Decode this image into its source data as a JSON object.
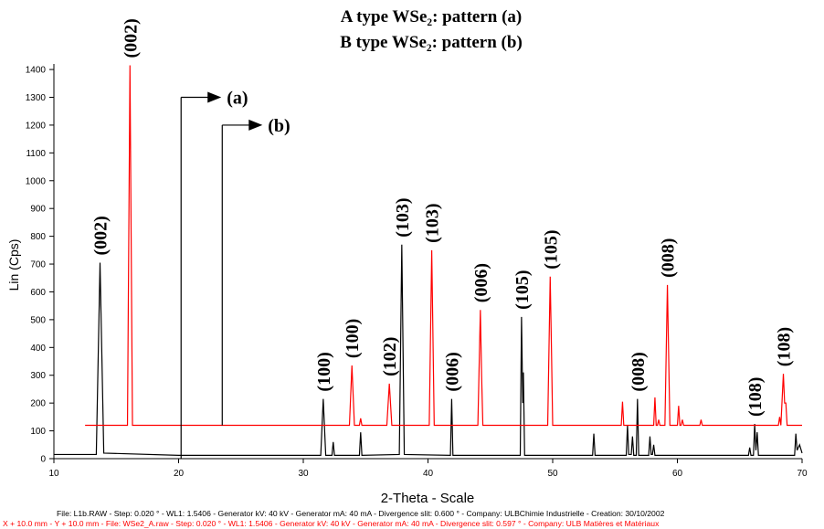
{
  "chart_data": {
    "type": "line",
    "title": "A type WSe₂: pattern (a)",
    "subtitle": "B type WSe₂: pattern (b)",
    "x_label": "2-Theta - Scale",
    "y_label": "Lin (Cps)",
    "xlim": [
      10,
      70
    ],
    "ylim": [
      0,
      1420
    ],
    "xticks": [
      10,
      20,
      30,
      40,
      50,
      60,
      70
    ],
    "yticks": [
      0,
      100,
      200,
      300,
      400,
      500,
      600,
      700,
      800,
      900,
      1000,
      1100,
      1200,
      1300,
      1400
    ],
    "series": [
      {
        "color": "#000000",
        "x": [
          10,
          13.4,
          13.7,
          14.0,
          20,
          31.4,
          31.6,
          31.8,
          32.3,
          32.4,
          32.5,
          34.5,
          34.6,
          34.7,
          37.7,
          37.9,
          38.1,
          41.8,
          41.9,
          42.0,
          47.4,
          47.5,
          47.6,
          47.65,
          47.75,
          53.2,
          53.3,
          53.4,
          55.9,
          56.0,
          56.1,
          56.3,
          56.4,
          56.5,
          56.7,
          56.8,
          56.9,
          57.7,
          57.8,
          57.9,
          58.0,
          58.1,
          58.2,
          65.7,
          65.8,
          65.9,
          66.1,
          66.2,
          66.3,
          66.4,
          66.5,
          69.4,
          69.5,
          69.6,
          69.8,
          70
        ],
        "values": [
          15,
          15,
          705,
          20,
          12,
          12,
          215,
          12,
          12,
          60,
          12,
          12,
          95,
          12,
          15,
          770,
          15,
          12,
          215,
          12,
          12,
          510,
          200,
          310,
          12,
          12,
          90,
          12,
          12,
          120,
          15,
          15,
          80,
          12,
          12,
          215,
          12,
          12,
          80,
          15,
          15,
          50,
          12,
          12,
          40,
          12,
          12,
          125,
          30,
          95,
          12,
          12,
          90,
          30,
          50,
          20
        ]
      },
      {
        "color": "#ff0000",
        "x": [
          12.5,
          15.9,
          16.1,
          16.3,
          33.7,
          33.9,
          34.1,
          34.5,
          34.6,
          34.7,
          36.7,
          36.9,
          37.1,
          40.1,
          40.3,
          40.5,
          44.0,
          44.2,
          44.3,
          44.4,
          49.6,
          49.8,
          49.9,
          50.0,
          55.5,
          55.6,
          55.7,
          58.1,
          58.2,
          58.3,
          58.4,
          58.5,
          58.6,
          59.0,
          59.2,
          59.4,
          60.0,
          60.1,
          60.2,
          60.3,
          60.4,
          60.5,
          61.8,
          61.9,
          62.0,
          68.1,
          68.2,
          68.3,
          68.5,
          68.6,
          68.7,
          68.8,
          70
        ],
        "values": [
          120,
          120,
          1415,
          120,
          120,
          335,
          120,
          120,
          145,
          120,
          120,
          270,
          120,
          120,
          750,
          120,
          120,
          535,
          300,
          120,
          120,
          655,
          400,
          120,
          120,
          205,
          120,
          120,
          220,
          120,
          120,
          140,
          120,
          120,
          625,
          120,
          120,
          190,
          120,
          120,
          140,
          120,
          120,
          140,
          120,
          120,
          150,
          120,
          305,
          200,
          200,
          120,
          120
        ]
      }
    ],
    "annotations": [
      {
        "text": "(002)",
        "x": 13.7,
        "y": 705
      },
      {
        "text": "(100)",
        "x": 31.6,
        "y": 215
      },
      {
        "text": "(103)",
        "x": 37.9,
        "y": 770
      },
      {
        "text": "(006)",
        "x": 41.9,
        "y": 215
      },
      {
        "text": "(105)",
        "x": 47.5,
        "y": 510
      },
      {
        "text": "(008)",
        "x": 56.8,
        "y": 215
      },
      {
        "text": "(108)",
        "x": 66.2,
        "y": 125
      },
      {
        "text": "(002)",
        "x": 16.1,
        "y": 1415
      },
      {
        "text": "(100)",
        "x": 33.9,
        "y": 335
      },
      {
        "text": "(102)",
        "x": 36.9,
        "y": 270
      },
      {
        "text": "(103)",
        "x": 40.3,
        "y": 750
      },
      {
        "text": "(006)",
        "x": 44.2,
        "y": 535
      },
      {
        "text": "(105)",
        "x": 49.8,
        "y": 655
      },
      {
        "text": "(008)",
        "x": 59.2,
        "y": 625
      },
      {
        "text": "(108)",
        "x": 68.5,
        "y": 305
      }
    ],
    "arrows": [
      {
        "label": "(a)",
        "x": 20.2,
        "y0": 0,
        "y": 1300
      },
      {
        "label": "(b)",
        "x": 23.5,
        "y0": 120,
        "y": 1200
      }
    ],
    "footnotes": [
      {
        "text": "File: L1b.RAW - Step: 0.020 ° - WL1: 1.5406 - Generator kV: 40 kV - Generator mA: 40 mA - Divergence slit: 0.600 ° - Company: ULBChimie Industrielle - Creation: 30/10/2002",
        "color": "#000000"
      },
      {
        "text": "X + 10.0 mm - Y + 10.0 mm - File: WSe2_A.raw - Step: 0.020 ° - WL1: 1.5406 - Generator kV: 40 kV - Generator mA: 40 mA - Divergence slit: 0.597 ° - Company: ULB Matières et Matériaux",
        "color": "#ff0000"
      }
    ]
  }
}
